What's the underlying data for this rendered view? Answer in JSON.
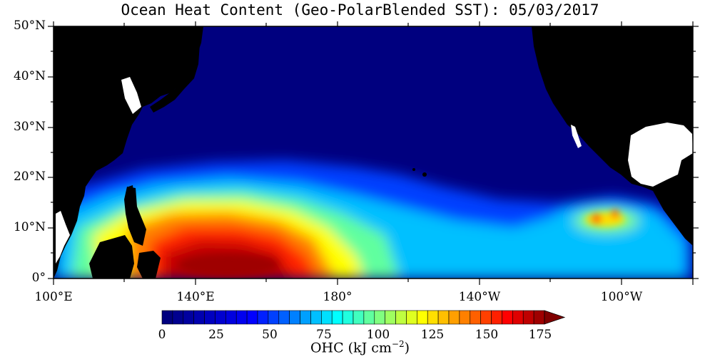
{
  "title": "Ocean Heat Content (Geo-PolarBlended SST): 05/03/2017",
  "lat_labels": [
    "50°N",
    "40°N",
    "30°N",
    "20°N",
    "10°N",
    "0°"
  ],
  "lon_labels": [
    "100°E",
    "140°E",
    "180°",
    "140°W",
    "100°W"
  ],
  "colorbar": {
    "ticks": [
      "0",
      "25",
      "50",
      "75",
      "100",
      "125",
      "150",
      "175"
    ],
    "label_main": "OHC (kJ cm",
    "label_exp": "−2",
    "label_close": ")",
    "colors": [
      "#00007f",
      "#00008f",
      "#00009f",
      "#0000af",
      "#0000bf",
      "#0000cf",
      "#0000df",
      "#0000ef",
      "#0000ff",
      "#0020ff",
      "#0040ff",
      "#0060ff",
      "#0080ff",
      "#00a0ff",
      "#00c0ff",
      "#00e0ff",
      "#00ffff",
      "#20ffdf",
      "#40ffbf",
      "#60ff9f",
      "#80ff80",
      "#9fff60",
      "#bfff40",
      "#dfff20",
      "#ffff00",
      "#ffdf00",
      "#ffbf00",
      "#ff9f00",
      "#ff8000",
      "#ff6000",
      "#ff4000",
      "#ff2000",
      "#ff0000",
      "#df0000",
      "#bf0000",
      "#9f0000"
    ],
    "over_color": "#800000"
  },
  "map": {
    "lat_range": [
      0,
      50
    ],
    "lon_range": [
      100,
      280
    ],
    "land_color": "#000000",
    "ocean_base": "#00007f"
  }
}
